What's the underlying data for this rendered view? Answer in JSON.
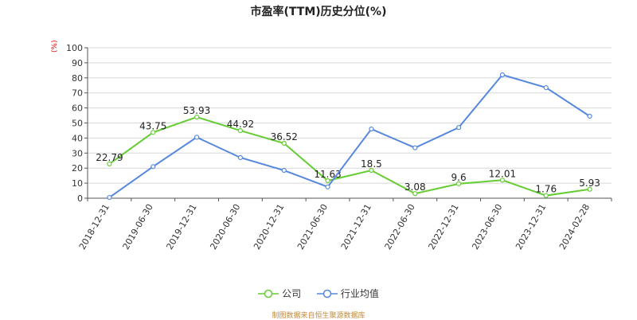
{
  "chart_data": {
    "type": "line",
    "title": "市盈率(TTM)历史分位(%)",
    "unit_label": "(%)",
    "categories": [
      "2018-12-31",
      "2019-06-30",
      "2019-12-31",
      "2020-06-30",
      "2020-12-31",
      "2021-06-30",
      "2021-12-31",
      "2022-06-30",
      "2022-12-31",
      "2023-06-30",
      "2023-12-31",
      "2024-02-28"
    ],
    "ylim": [
      0,
      100
    ],
    "yticks": [
      0,
      10,
      20,
      30,
      40,
      50,
      60,
      70,
      80,
      90,
      100
    ],
    "series": [
      {
        "name": "公司",
        "color": "#66cc33",
        "values": [
          22.79,
          43.75,
          53.93,
          44.92,
          36.52,
          11.63,
          18.5,
          3.08,
          9.6,
          12.01,
          1.76,
          5.93
        ],
        "labels": [
          "22.79",
          "43.75",
          "53.93",
          "44.92",
          "36.52",
          "11.63",
          "18.5",
          "3.08",
          "9.6",
          "12.01",
          "1.76",
          "5.93"
        ]
      },
      {
        "name": "行业均值",
        "color": "#5588dd",
        "values": [
          0.5,
          21,
          40.5,
          27,
          18.5,
          7.5,
          46,
          33.5,
          47,
          82,
          73.5,
          54.5
        ]
      }
    ],
    "grid": true,
    "legend_position": "bottom"
  },
  "source": "制图数据来自恒生聚源数据库"
}
